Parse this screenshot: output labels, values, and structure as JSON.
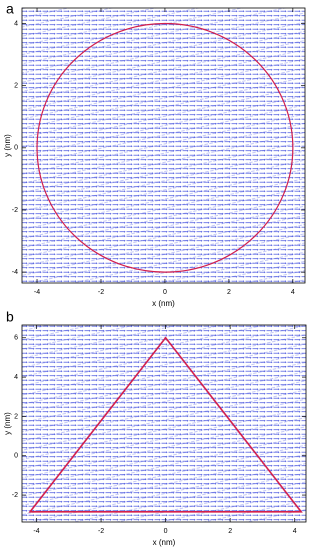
{
  "chart_data": [
    {
      "type": "vector-field",
      "panel_label": "a",
      "xlabel": "x (nm)",
      "ylabel": "y (nm)",
      "xlim": [
        -4.47,
        4.38
      ],
      "ylim": [
        -4.35,
        4.5
      ],
      "xticks": [
        -4,
        -2,
        0,
        2,
        4
      ],
      "yticks": [
        -4,
        -2,
        0,
        2,
        4
      ],
      "circle": {
        "center": [
          0,
          0
        ],
        "radius": 4,
        "color": "#d21f4d"
      }
    },
    {
      "type": "vector-field",
      "panel_label": "b",
      "xlabel": "x (nm)",
      "ylabel": "y (nm)",
      "xlim": [
        -4.45,
        4.35
      ],
      "ylim": [
        -3.37,
        6.65
      ],
      "xticks": [
        -4,
        -2,
        0,
        2,
        4
      ],
      "yticks": [
        -2,
        0,
        2,
        4,
        6
      ],
      "polygon": {
        "x": [
          0,
          -4.2,
          4.2
        ],
        "y": [
          6,
          -2.85,
          -2.85
        ],
        "color": "#d21f4d"
      }
    }
  ]
}
